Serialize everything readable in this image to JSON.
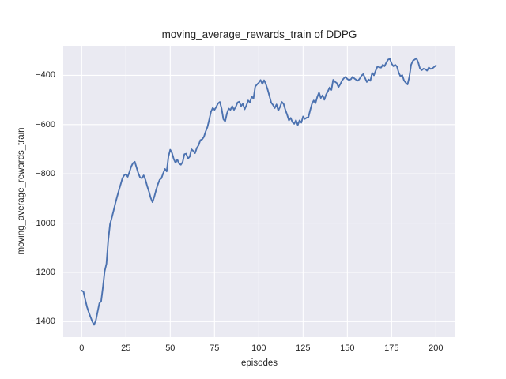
{
  "figure": {
    "title": "moving_average_rewards_train of DDPG",
    "xlabel": "episodes",
    "ylabel": "moving_average_rewards_train"
  },
  "colors": {
    "figure_bg": "#ffffff",
    "plot_bg": "#eaeaf2",
    "grid": "#ffffff",
    "line": "#4c72b0",
    "text": "#262626"
  },
  "chart_data": {
    "type": "line",
    "title": "moving_average_rewards_train of DDPG",
    "xlabel": "episodes",
    "ylabel": "moving_average_rewards_train",
    "legend": null,
    "grid": true,
    "x_ticks": [
      0,
      25,
      50,
      75,
      100,
      125,
      150,
      175,
      200
    ],
    "x_tick_labels": [
      "0",
      "25",
      "50",
      "75",
      "100",
      "125",
      "150",
      "175",
      "200"
    ],
    "y_ticks": [
      -400,
      -600,
      -800,
      -1000,
      -1200,
      -1400
    ],
    "y_tick_labels": [
      "−400",
      "−600",
      "−800",
      "−1000",
      "−1200",
      "−1400"
    ],
    "xlim": [
      -10.4,
      211
    ],
    "ylim": [
      -1463,
      -280
    ],
    "series": [
      {
        "name": "DDPG moving average rewards (train)",
        "x_start": 0,
        "x_step": 1,
        "values": [
          -1274,
          -1278,
          -1310,
          -1340,
          -1362,
          -1381,
          -1400,
          -1413,
          -1395,
          -1360,
          -1325,
          -1317,
          -1260,
          -1195,
          -1165,
          -1070,
          -1005,
          -978,
          -950,
          -920,
          -893,
          -867,
          -843,
          -818,
          -806,
          -801,
          -812,
          -792,
          -770,
          -756,
          -751,
          -775,
          -798,
          -815,
          -818,
          -806,
          -824,
          -850,
          -872,
          -898,
          -915,
          -893,
          -866,
          -843,
          -824,
          -818,
          -798,
          -780,
          -790,
          -730,
          -702,
          -715,
          -740,
          -755,
          -742,
          -758,
          -763,
          -752,
          -720,
          -718,
          -738,
          -730,
          -700,
          -707,
          -716,
          -695,
          -684,
          -663,
          -660,
          -650,
          -628,
          -610,
          -580,
          -548,
          -532,
          -540,
          -528,
          -514,
          -508,
          -535,
          -578,
          -587,
          -555,
          -535,
          -540,
          -525,
          -540,
          -528,
          -510,
          -507,
          -525,
          -515,
          -538,
          -522,
          -502,
          -510,
          -486,
          -494,
          -445,
          -437,
          -430,
          -419,
          -435,
          -420,
          -436,
          -458,
          -484,
          -511,
          -520,
          -533,
          -518,
          -543,
          -528,
          -508,
          -516,
          -540,
          -560,
          -583,
          -573,
          -590,
          -597,
          -582,
          -602,
          -583,
          -592,
          -567,
          -577,
          -572,
          -570,
          -542,
          -516,
          -502,
          -513,
          -488,
          -470,
          -492,
          -481,
          -499,
          -478,
          -465,
          -449,
          -459,
          -418,
          -426,
          -431,
          -448,
          -436,
          -421,
          -412,
          -406,
          -415,
          -419,
          -416,
          -406,
          -413,
          -418,
          -422,
          -413,
          -401,
          -395,
          -411,
          -427,
          -417,
          -422,
          -390,
          -400,
          -381,
          -364,
          -367,
          -369,
          -357,
          -363,
          -348,
          -336,
          -333,
          -352,
          -363,
          -357,
          -364,
          -389,
          -404,
          -399,
          -421,
          -430,
          -437,
          -406,
          -357,
          -341,
          -336,
          -331,
          -347,
          -372,
          -379,
          -373,
          -375,
          -381,
          -368,
          -374,
          -372,
          -366,
          -360
        ]
      }
    ]
  }
}
